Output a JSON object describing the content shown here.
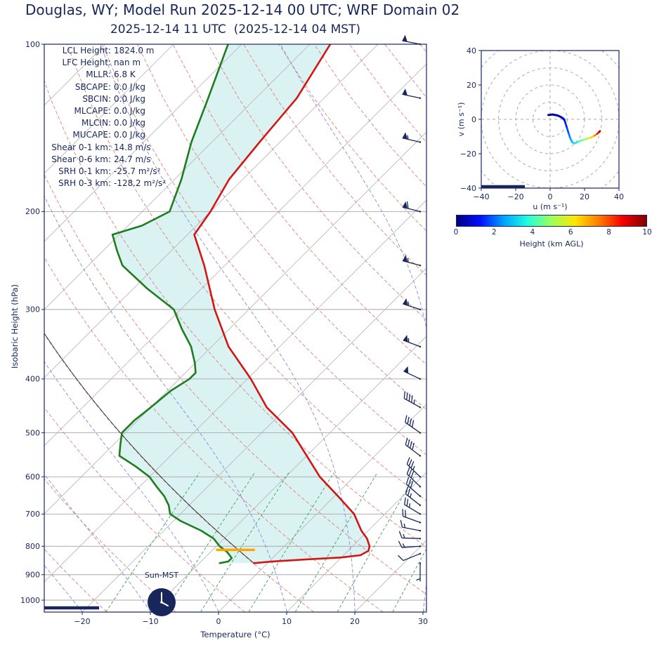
{
  "header": {
    "title": "Douglas, WY; Model Run 2025-12-14 00 UTC; WRF Domain 02",
    "subtitle": "2025-12-14 11 UTC  (2025-12-14 04 MST)"
  },
  "stats": {
    "rows": [
      {
        "label": "LCL Height:",
        "value": "1824.0 m"
      },
      {
        "label": "LFC Height:",
        "value": "nan m"
      },
      {
        "label": "MLLR:",
        "value": "6.8 K"
      },
      {
        "label": "SBCAPE:",
        "value": "0.0 J/kg"
      },
      {
        "label": "SBCIN:",
        "value": "0.0 J/kg"
      },
      {
        "label": "MLCAPE:",
        "value": "0.0 J/kg"
      },
      {
        "label": "MLCIN:",
        "value": "0.0 J/kg"
      },
      {
        "label": "MUCAPE:",
        "value": "0.0 J/kg"
      },
      {
        "label": "Shear 0-1 km:",
        "value": "14.8 m/s"
      },
      {
        "label": "Shear 0-6 km:",
        "value": "24.7 m/s"
      },
      {
        "label": "SRH 0-1 km:",
        "value": "-25.7 m²/s²"
      },
      {
        "label": "SRH 0-3 km:",
        "value": "-128.2 m²/s²"
      }
    ]
  },
  "skewt": {
    "xlabel": "Temperature (°C)",
    "ylabel": "Isobaric Height (hPa)",
    "x_tick_labels": [
      "−20",
      "−10",
      "0",
      "10",
      "20",
      "30"
    ],
    "y_tick_labels": [
      "100",
      "200",
      "300",
      "400",
      "500",
      "600",
      "700",
      "800",
      "900",
      "1000"
    ],
    "sun_label": "Sun-MST"
  },
  "hodograph_axes": {
    "xlabel": "u (m s⁻¹)",
    "ylabel": "v (m s⁻¹)",
    "x_tick_labels": [
      "−40",
      "−20",
      "0",
      "20",
      "40"
    ],
    "y_tick_labels": [
      "40",
      "20",
      "0",
      "−20",
      "−40"
    ]
  },
  "colorbar": {
    "label": "Height (km AGL)",
    "tick_labels": [
      "0",
      "2",
      "4",
      "6",
      "8",
      "10"
    ],
    "colors": [
      "#000080",
      "#0010ff",
      "#00a4ff",
      "#22ffdd",
      "#9dff5a",
      "#ffe600",
      "#ff7c00",
      "#f40000",
      "#800000"
    ]
  },
  "colors": {
    "navy": "#17275c",
    "temperature_line": "#d21616",
    "dewpoint_line": "#1f7d1f",
    "fill_between": "#daf3f2",
    "isotherm": "#b5b5b5",
    "isobar": "#a8a8a8",
    "dry_adiabat": "#e08080",
    "moist_adiabat": "#8888dd",
    "mixing_ratio": "#3aa054",
    "parcel": "#1a1a1a",
    "barb": "#17275c",
    "lcl_marker": "#ffa500",
    "hodo_ring": "#aaaaaa"
  },
  "chart_data": {
    "type": "line",
    "subtype": "skewt-logp-sounding",
    "pressure_axis": {
      "scale": "log",
      "range": [
        100,
        1050
      ],
      "ticks": [
        100,
        200,
        300,
        400,
        500,
        600,
        700,
        800,
        900,
        1000
      ]
    },
    "temperature_axis": {
      "ticks": [
        -20,
        -10,
        0,
        10,
        20,
        30
      ],
      "skew_deg": 45
    },
    "temperature_profile": {
      "pressure_hPa": [
        100,
        125,
        150,
        175,
        200,
        220,
        250,
        300,
        350,
        400,
        450,
        500,
        550,
        600,
        650,
        700,
        750,
        775,
        800,
        815,
        830,
        838,
        845,
        852,
        858
      ],
      "temp_C": [
        -67,
        -64,
        -63,
        -62,
        -60,
        -59,
        -53,
        -45,
        -37.5,
        -29.5,
        -23,
        -15.5,
        -10,
        -5,
        0.5,
        5.5,
        9,
        11,
        12.5,
        13,
        12.5,
        10,
        5,
        0.5,
        -2
      ]
    },
    "dewpoint_profile": {
      "pressure_hPa": [
        100,
        125,
        150,
        175,
        200,
        212,
        220,
        235,
        250,
        275,
        300,
        325,
        350,
        375,
        390,
        400,
        420,
        450,
        475,
        500,
        525,
        550,
        575,
        600,
        625,
        650,
        675,
        700,
        720,
        750,
        775,
        800,
        820,
        840,
        852,
        858
      ],
      "dewpoint_C": [
        -82,
        -77,
        -73,
        -69,
        -66,
        -68,
        -71,
        -68,
        -65,
        -58,
        -51,
        -47,
        -43,
        -40,
        -38.5,
        -38.5,
        -39.5,
        -40,
        -40.5,
        -40.5,
        -39,
        -37.5,
        -33.5,
        -30,
        -27.5,
        -25,
        -23,
        -21.5,
        -19,
        -14.5,
        -11.5,
        -9.5,
        -7.5,
        -6,
        -6,
        -7
      ]
    },
    "parcel_trace": {
      "surface_pressure_hPa": 858,
      "surface_temp_C": -2
    },
    "lcl_marker": {
      "pressure_hPa": 812,
      "temp_from_C": -9.5,
      "temp_to_C": -3.8
    },
    "wind_barbs": [
      {
        "p": 100,
        "speed_kt": 50,
        "dir_deg": 281
      },
      {
        "p": 125,
        "speed_kt": 52,
        "dir_deg": 282
      },
      {
        "p": 150,
        "speed_kt": 55,
        "dir_deg": 283
      },
      {
        "p": 200,
        "speed_kt": 58,
        "dir_deg": 284
      },
      {
        "p": 250,
        "speed_kt": 57,
        "dir_deg": 285
      },
      {
        "p": 300,
        "speed_kt": 55,
        "dir_deg": 288
      },
      {
        "p": 350,
        "speed_kt": 53,
        "dir_deg": 291
      },
      {
        "p": 400,
        "speed_kt": 50,
        "dir_deg": 295
      },
      {
        "p": 450,
        "speed_kt": 46,
        "dir_deg": 299
      },
      {
        "p": 500,
        "speed_kt": 42,
        "dir_deg": 305
      },
      {
        "p": 550,
        "speed_kt": 39,
        "dir_deg": 307
      },
      {
        "p": 600,
        "speed_kt": 35,
        "dir_deg": 314
      },
      {
        "p": 625,
        "speed_kt": 32,
        "dir_deg": 314
      },
      {
        "p": 650,
        "speed_kt": 29,
        "dir_deg": 311
      },
      {
        "p": 675,
        "speed_kt": 27,
        "dir_deg": 308
      },
      {
        "p": 700,
        "speed_kt": 23,
        "dir_deg": 301
      },
      {
        "p": 725,
        "speed_kt": 19,
        "dir_deg": 290
      },
      {
        "p": 750,
        "speed_kt": 17,
        "dir_deg": 281
      },
      {
        "p": 775,
        "speed_kt": 16,
        "dir_deg": 272
      },
      {
        "p": 800,
        "speed_kt": 15,
        "dir_deg": 266
      },
      {
        "p": 825,
        "speed_kt": 9,
        "dir_deg": 248
      },
      {
        "p": 858,
        "speed_kt": 4,
        "dir_deg": 180
      }
    ],
    "background_lines": {
      "isotherms_C": [
        -110,
        40,
        10
      ],
      "dry_adiabats_theta_C": [
        -40,
        150,
        10
      ],
      "moist_adiabats_surface_C": [
        -40,
        -30,
        -20,
        -10,
        0,
        10,
        20,
        30,
        40
      ],
      "mixing_ratio_g_per_kg": [
        1,
        2,
        3,
        5,
        8,
        12,
        20
      ]
    },
    "hodograph": {
      "u_range": [
        -40,
        40
      ],
      "v_range": [
        -40,
        40
      ],
      "ring_interval_ms": 10,
      "height_colormap_range_km": [
        0,
        10
      ],
      "trace": [
        {
          "h": 0.0,
          "u": -1.0,
          "v": 2.5
        },
        {
          "h": 0.1,
          "u": 1.5,
          "v": 2.8
        },
        {
          "h": 0.3,
          "u": 4.5,
          "v": 2.2
        },
        {
          "h": 0.5,
          "u": 6.5,
          "v": 1.2
        },
        {
          "h": 0.7,
          "u": 7.8,
          "v": 0.3
        },
        {
          "h": 0.9,
          "u": 8.4,
          "v": -0.6
        },
        {
          "h": 1.2,
          "u": 9.0,
          "v": -2.5
        },
        {
          "h": 1.5,
          "u": 9.8,
          "v": -5.0
        },
        {
          "h": 1.9,
          "u": 10.8,
          "v": -8.3
        },
        {
          "h": 2.3,
          "u": 11.7,
          "v": -11.0
        },
        {
          "h": 2.8,
          "u": 12.8,
          "v": -13.3
        },
        {
          "h": 3.2,
          "u": 14.2,
          "v": -14.0
        },
        {
          "h": 3.7,
          "u": 16.1,
          "v": -13.2
        },
        {
          "h": 4.2,
          "u": 18.0,
          "v": -12.3
        },
        {
          "h": 4.7,
          "u": 19.9,
          "v": -11.8
        },
        {
          "h": 5.3,
          "u": 21.8,
          "v": -11.2
        },
        {
          "h": 6.0,
          "u": 23.8,
          "v": -10.5
        },
        {
          "h": 7.0,
          "u": 25.8,
          "v": -9.5
        },
        {
          "h": 8.0,
          "u": 27.4,
          "v": -8.4
        },
        {
          "h": 9.0,
          "u": 28.4,
          "v": -7.4
        },
        {
          "h": 10.0,
          "u": 29.0,
          "v": -6.8
        }
      ]
    }
  }
}
